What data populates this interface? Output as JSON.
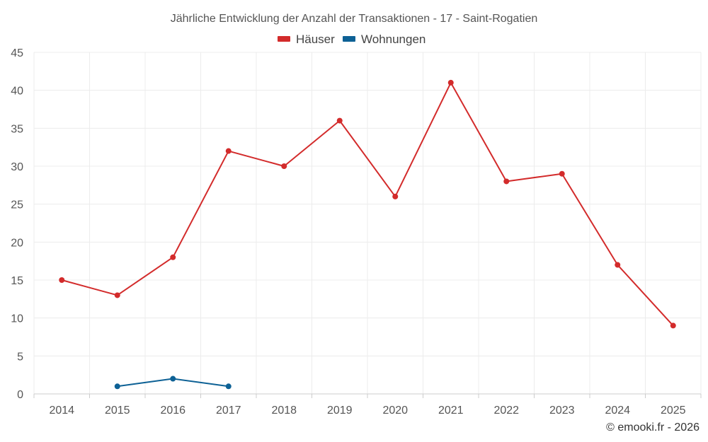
{
  "chart_data": {
    "type": "line",
    "title": "Jährliche Entwicklung der Anzahl der Transaktionen - 17 - Saint-Rogatien",
    "x": [
      "2014",
      "2015",
      "2016",
      "2017",
      "2018",
      "2019",
      "2020",
      "2021",
      "2022",
      "2023",
      "2024",
      "2025"
    ],
    "ylim": [
      0,
      45
    ],
    "yticks": [
      0,
      5,
      10,
      15,
      20,
      25,
      30,
      35,
      40,
      45
    ],
    "grid": true,
    "legend_position": "top-center",
    "series": [
      {
        "name": "Häuser",
        "color": "#d32b2b",
        "values": [
          15,
          13,
          18,
          32,
          30,
          36,
          26,
          41,
          28,
          29,
          17,
          9
        ]
      },
      {
        "name": "Wohnungen",
        "color": "#0d6195",
        "values": [
          null,
          1,
          2,
          1,
          null,
          null,
          null,
          null,
          null,
          null,
          null,
          null
        ]
      }
    ],
    "credit": "© emooki.fr - 2026"
  }
}
